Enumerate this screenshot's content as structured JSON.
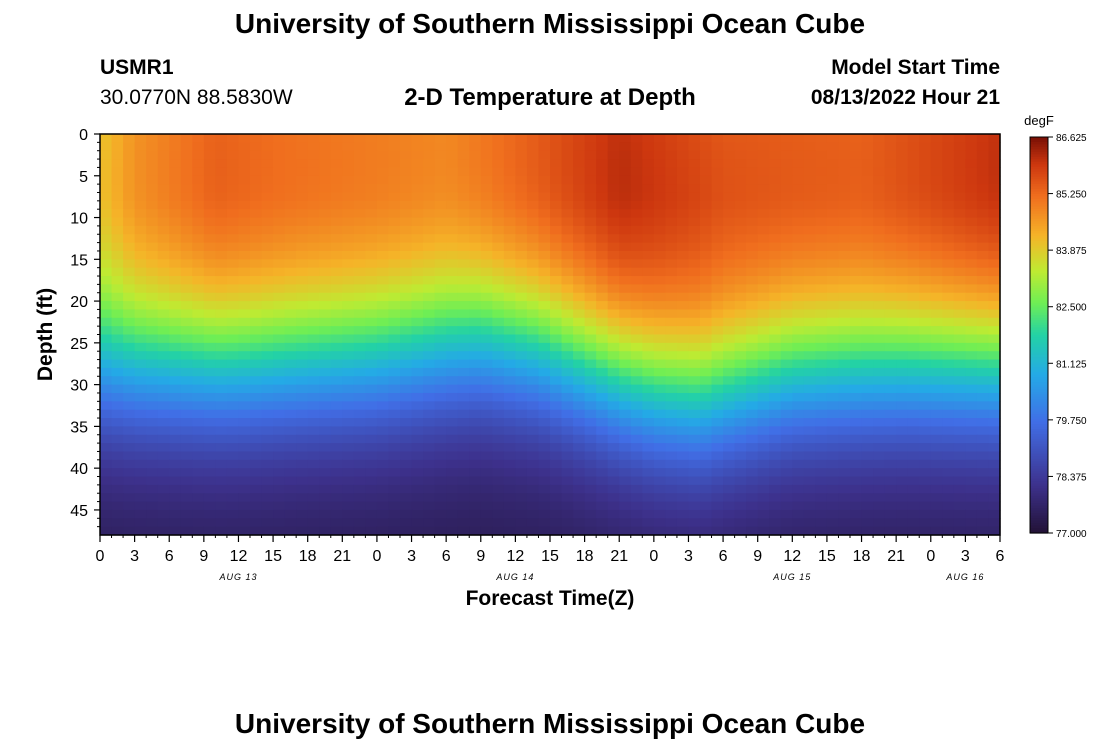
{
  "header": {
    "title": "University of Southern Mississippi Ocean Cube",
    "station": "USMR1",
    "coordinates": "30.0770N  88.5830W",
    "subtitle": "2-D Temperature at Depth",
    "model_start_label": "Model Start Time",
    "model_start_value": "08/13/2022 Hour 21"
  },
  "footer": {
    "title": "University of Southern Mississippi Ocean Cube"
  },
  "chart_data": {
    "type": "heatmap",
    "title": "2-D Temperature at Depth",
    "xlabel": "Forecast Time(Z)",
    "ylabel": "Depth (ft)",
    "x_tick_labels": [
      "0",
      "3",
      "6",
      "9",
      "12",
      "15",
      "18",
      "21",
      "0",
      "3",
      "6",
      "9",
      "12",
      "15",
      "18",
      "21",
      "0",
      "3",
      "6",
      "9",
      "12",
      "15",
      "18",
      "21",
      "0",
      "3",
      "6"
    ],
    "x_range_hours": [
      0,
      78
    ],
    "date_labels": [
      {
        "hour": 12,
        "label": "AUG 13"
      },
      {
        "hour": 36,
        "label": "AUG 14"
      },
      {
        "hour": 60,
        "label": "AUG 15"
      },
      {
        "hour": 75,
        "label": "AUG 16"
      }
    ],
    "y_ticks": [
      0,
      5,
      10,
      15,
      20,
      25,
      30,
      35,
      40,
      45
    ],
    "ylim": [
      0,
      48
    ],
    "colorbar": {
      "unit": "degF",
      "min": 77.0,
      "max": 86.625,
      "ticks": [
        "86.625",
        "85.250",
        "83.875",
        "82.500",
        "81.125",
        "79.750",
        "78.375",
        "77.000"
      ]
    },
    "thermocline_depth_ft": [
      {
        "hour": 0,
        "depth": 28
      },
      {
        "hour": 12,
        "depth": 28
      },
      {
        "hour": 24,
        "depth": 27
      },
      {
        "hour": 33,
        "depth": 25
      },
      {
        "hour": 38,
        "depth": 26
      },
      {
        "hour": 48,
        "depth": 31
      },
      {
        "hour": 52,
        "depth": 32
      },
      {
        "hour": 60,
        "depth": 29
      },
      {
        "hour": 70,
        "depth": 28
      },
      {
        "hour": 78,
        "depth": 28
      }
    ],
    "surface_temperature_degF": [
      {
        "hour": 0,
        "value": 84.3
      },
      {
        "hour": 3,
        "value": 85.0
      },
      {
        "hour": 10,
        "value": 85.7
      },
      {
        "hour": 16,
        "value": 85.5
      },
      {
        "hour": 30,
        "value": 85.2
      },
      {
        "hour": 45,
        "value": 86.4
      },
      {
        "hour": 54,
        "value": 85.8
      },
      {
        "hour": 66,
        "value": 85.7
      },
      {
        "hour": 78,
        "value": 86.4
      }
    ],
    "bottom_temperature_degF": 77.3
  }
}
